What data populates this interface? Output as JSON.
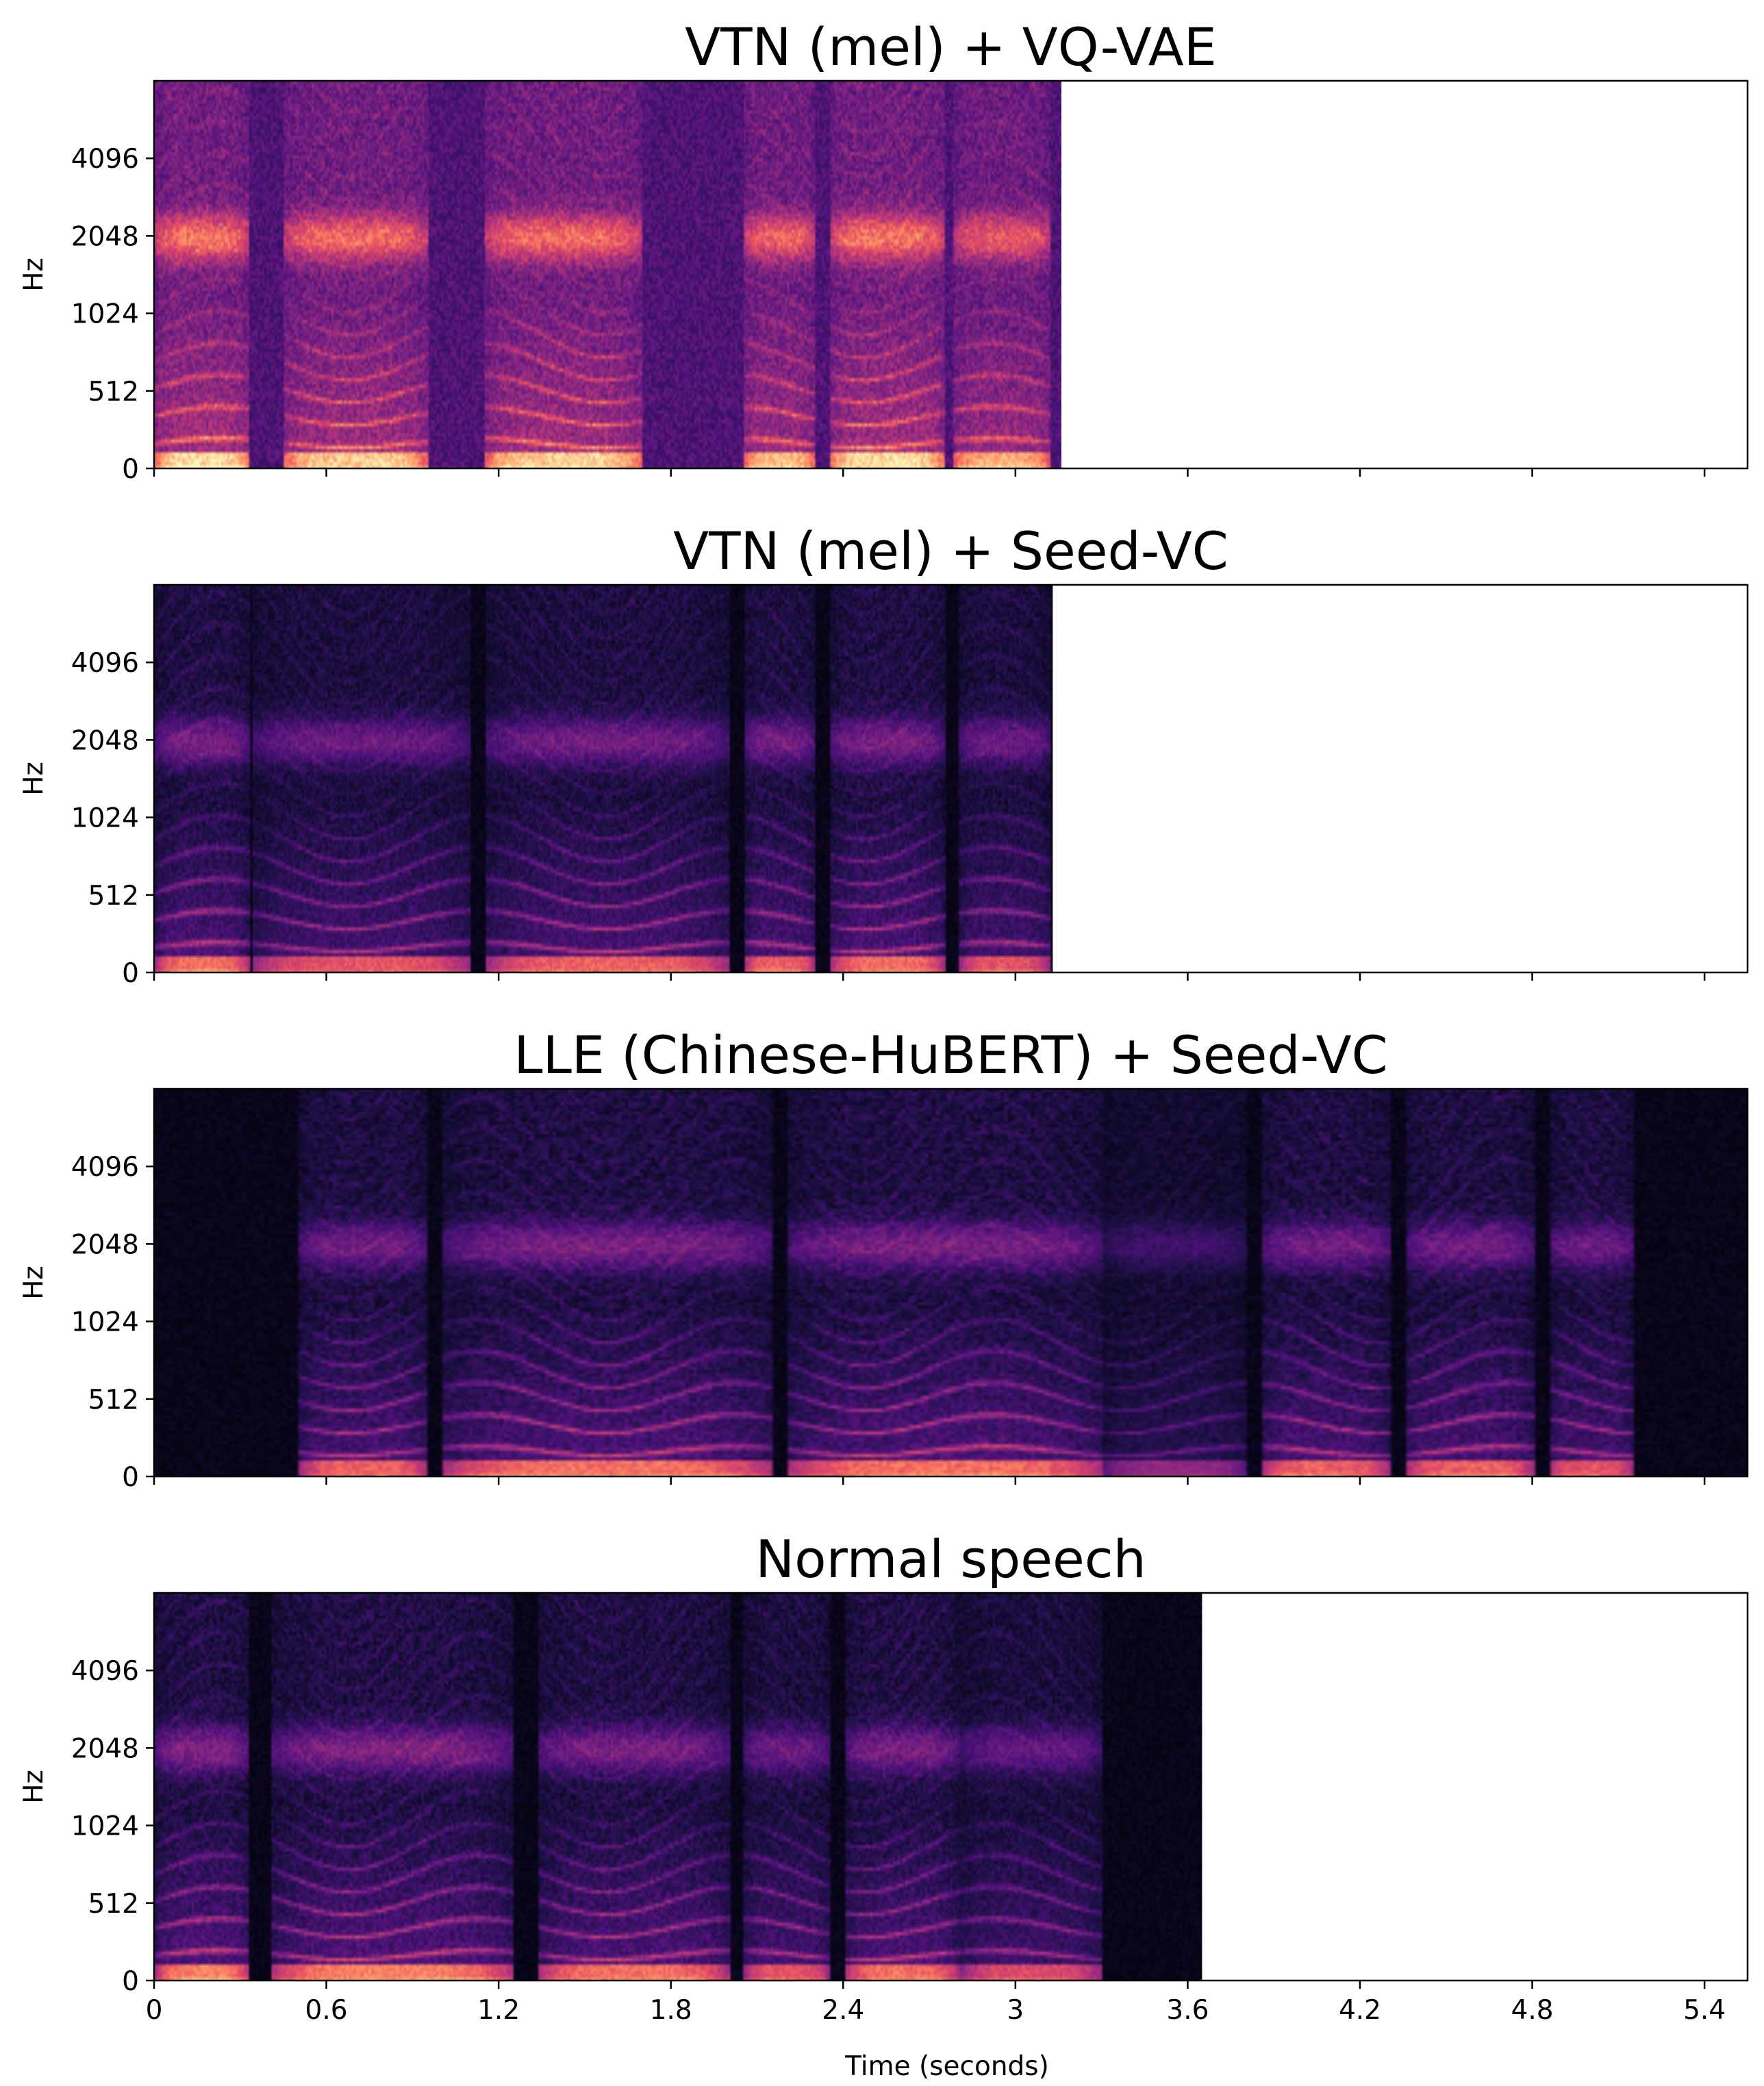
{
  "chart_data": [
    {
      "type": "heatmap",
      "title": "VTN (mel) + VQ-VAE",
      "ylabel": "Hz",
      "xlabel": "",
      "x_ticks": [
        "0",
        "0.6",
        "1.2",
        "1.8",
        "2.4",
        "3",
        "3.6",
        "4.2",
        "4.8",
        "5.4"
      ],
      "y_ticks": [
        "0",
        "512",
        "1024",
        "2048",
        "4096"
      ],
      "xlim": [
        0,
        5.55
      ],
      "duration": 3.16,
      "colormap": "magma",
      "background": "noisy",
      "segments": [
        {
          "start": 0.0,
          "end": 0.33,
          "energy": 0.95
        },
        {
          "start": 0.45,
          "end": 0.95,
          "energy": 0.9
        },
        {
          "start": 1.15,
          "end": 1.7,
          "energy": 0.9
        },
        {
          "start": 2.05,
          "end": 2.3,
          "energy": 0.85
        },
        {
          "start": 2.35,
          "end": 2.75,
          "energy": 0.95
        },
        {
          "start": 2.78,
          "end": 3.12,
          "energy": 0.8
        }
      ]
    },
    {
      "type": "heatmap",
      "title": "VTN (mel) + Seed-VC",
      "ylabel": "Hz",
      "xlabel": "",
      "x_ticks": [
        "0",
        "0.6",
        "1.2",
        "1.8",
        "2.4",
        "3",
        "3.6",
        "4.2",
        "4.8",
        "5.4"
      ],
      "y_ticks": [
        "0",
        "512",
        "1024",
        "2048",
        "4096"
      ],
      "xlim": [
        0,
        5.55
      ],
      "duration": 3.13,
      "colormap": "magma",
      "background": "dark",
      "segments": [
        {
          "start": 0.0,
          "end": 0.33,
          "energy": 0.9
        },
        {
          "start": 0.34,
          "end": 1.1,
          "energy": 0.8
        },
        {
          "start": 1.15,
          "end": 2.0,
          "energy": 0.85
        },
        {
          "start": 2.05,
          "end": 2.3,
          "energy": 0.85
        },
        {
          "start": 2.35,
          "end": 2.75,
          "energy": 0.9
        },
        {
          "start": 2.8,
          "end": 3.12,
          "energy": 0.8
        }
      ]
    },
    {
      "type": "heatmap",
      "title": "LLE (Chinese-HuBERT) + Seed-VC",
      "ylabel": "Hz",
      "xlabel": "",
      "x_ticks": [
        "0",
        "0.6",
        "1.2",
        "1.8",
        "2.4",
        "3",
        "3.6",
        "4.2",
        "4.8",
        "5.4"
      ],
      "y_ticks": [
        "0",
        "512",
        "1024",
        "2048",
        "4096"
      ],
      "xlim": [
        0,
        5.55
      ],
      "duration": 5.55,
      "colormap": "magma",
      "background": "dark",
      "segments": [
        {
          "start": 0.5,
          "end": 0.95,
          "energy": 0.85
        },
        {
          "start": 1.0,
          "end": 2.15,
          "energy": 0.9
        },
        {
          "start": 2.2,
          "end": 3.3,
          "energy": 0.9
        },
        {
          "start": 3.3,
          "end": 3.8,
          "energy": 0.5
        },
        {
          "start": 3.85,
          "end": 4.3,
          "energy": 0.85
        },
        {
          "start": 4.35,
          "end": 4.8,
          "energy": 0.85
        },
        {
          "start": 4.85,
          "end": 5.15,
          "energy": 0.8
        }
      ]
    },
    {
      "type": "heatmap",
      "title": "Normal speech",
      "ylabel": "Hz",
      "xlabel": "Time (seconds)",
      "x_ticks": [
        "0",
        "0.6",
        "1.2",
        "1.8",
        "2.4",
        "3",
        "3.6",
        "4.2",
        "4.8",
        "5.4"
      ],
      "y_ticks": [
        "0",
        "512",
        "1024",
        "2048",
        "4096"
      ],
      "xlim": [
        0,
        5.55
      ],
      "duration": 3.65,
      "colormap": "magma",
      "background": "dark",
      "segments": [
        {
          "start": 0.0,
          "end": 0.33,
          "energy": 0.95
        },
        {
          "start": 0.4,
          "end": 1.25,
          "energy": 0.95
        },
        {
          "start": 1.33,
          "end": 2.0,
          "energy": 0.9
        },
        {
          "start": 2.05,
          "end": 2.35,
          "energy": 0.8
        },
        {
          "start": 2.4,
          "end": 2.8,
          "energy": 0.9
        },
        {
          "start": 2.8,
          "end": 3.3,
          "energy": 0.75
        }
      ]
    }
  ]
}
